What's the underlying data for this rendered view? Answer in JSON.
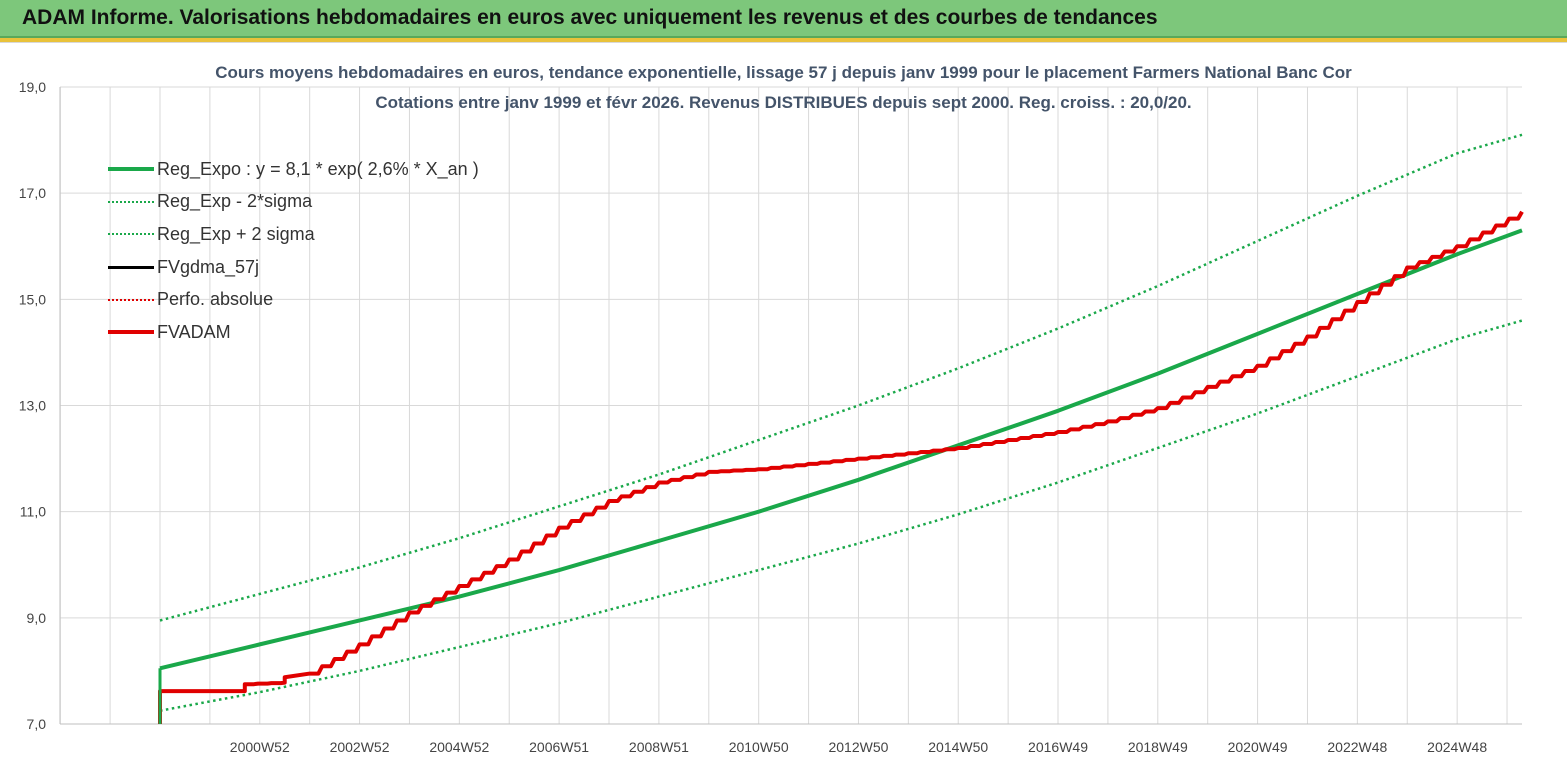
{
  "header": {
    "title": "ADAM Informe. Valorisations hebdomadaires en euros avec uniquement les revenus et des courbes de tendances"
  },
  "colors": {
    "header_bg": "#7dc77b",
    "accent": "#e9c23a",
    "trend": "#1aa84a",
    "fvadam": "#e00000",
    "grid": "#d9d9d9"
  },
  "chart_data": {
    "type": "line",
    "title": "Cours moyens hebdomadaires en euros, tendance exponentielle, lissage 57 j depuis janv 1999  pour le placement Farmers National Banc Cor",
    "subtitle": "Cotations entre janv 1999  et févr 2026. Revenus DISTRIBUES depuis sept 2000. Reg. croiss. : 20,0/20.",
    "xlabel": "",
    "ylabel": "",
    "ylim": [
      7.0,
      19.0
    ],
    "yticks": [
      "7,0",
      "9,0",
      "11,0",
      "13,0",
      "15,0",
      "17,0",
      "19,0"
    ],
    "ytick_values": [
      7,
      9,
      11,
      13,
      15,
      17,
      19
    ],
    "xlim": [
      1999.0,
      2026.3
    ],
    "xticks": [
      "2000W52",
      "2002W52",
      "2004W52",
      "2006W51",
      "2008W51",
      "2010W50",
      "2012W50",
      "2014W50",
      "2016W49",
      "2018W49",
      "2020W49",
      "2022W48",
      "2024W48"
    ],
    "xtick_values": [
      2001.0,
      2003.0,
      2005.0,
      2007.0,
      2009.0,
      2011.0,
      2013.0,
      2015.0,
      2017.0,
      2019.0,
      2021.0,
      2023.0,
      2025.0
    ],
    "grid": true,
    "legend_position": "top-left",
    "legend": [
      {
        "label": "Reg_Expo : y = 8,1 * exp( 2,6% *  X_an )",
        "color": "#1aa84a",
        "style": "solid-thick"
      },
      {
        "label": "Reg_Exp - 2*sigma",
        "color": "#1aa84a",
        "style": "dotted"
      },
      {
        "label": "Reg_Exp + 2 sigma",
        "color": "#1aa84a",
        "style": "dotted"
      },
      {
        "label": "FVgdma_57j",
        "color": "#000000",
        "style": "solid"
      },
      {
        "label": "Perfo. absolue",
        "color": "#e00000",
        "style": "dotted"
      },
      {
        "label": "FVADAM",
        "color": "#e00000",
        "style": "solid-thick"
      }
    ],
    "series": [
      {
        "name": "Reg_Expo : y = 8,1 * exp( 2,6% *  X_an )",
        "x": [
          1999.0,
          2001.0,
          2003.0,
          2005.0,
          2007.0,
          2009.0,
          2011.0,
          2013.0,
          2015.0,
          2017.0,
          2019.0,
          2021.0,
          2023.0,
          2025.0,
          2026.3
        ],
        "y": [
          8.05,
          8.5,
          8.95,
          9.4,
          9.9,
          10.45,
          11.0,
          11.6,
          12.25,
          12.9,
          13.6,
          14.35,
          15.1,
          15.85,
          16.3
        ]
      },
      {
        "name": "Reg_Exp - 2*sigma",
        "x": [
          1999.0,
          2001.0,
          2003.0,
          2005.0,
          2007.0,
          2009.0,
          2011.0,
          2013.0,
          2015.0,
          2017.0,
          2019.0,
          2021.0,
          2023.0,
          2025.0,
          2026.3
        ],
        "y": [
          7.25,
          7.6,
          8.0,
          8.45,
          8.9,
          9.4,
          9.9,
          10.4,
          10.95,
          11.55,
          12.2,
          12.85,
          13.55,
          14.25,
          14.6
        ]
      },
      {
        "name": "Reg_Exp + 2 sigma",
        "x": [
          1999.0,
          2001.0,
          2003.0,
          2005.0,
          2007.0,
          2009.0,
          2011.0,
          2013.0,
          2015.0,
          2017.0,
          2019.0,
          2021.0,
          2023.0,
          2025.0,
          2026.3
        ],
        "y": [
          8.95,
          9.45,
          9.95,
          10.5,
          11.1,
          11.7,
          12.35,
          13.0,
          13.7,
          14.45,
          15.25,
          16.1,
          16.95,
          17.75,
          18.1
        ]
      },
      {
        "name": "FVADAM",
        "x": [
          1999.0,
          1999.0,
          2000.7,
          2000.7,
          2001.5,
          2001.5,
          2002.0,
          2003.0,
          2004.0,
          2005.0,
          2006.0,
          2007.0,
          2008.0,
          2009.0,
          2010.0,
          2011.0,
          2012.0,
          2013.0,
          2014.0,
          2015.0,
          2016.0,
          2017.0,
          2018.0,
          2019.0,
          2020.0,
          2021.0,
          2022.0,
          2023.0,
          2024.0,
          2025.0,
          2026.3
        ],
        "y": [
          7.0,
          7.62,
          7.62,
          7.75,
          7.78,
          7.88,
          7.95,
          8.5,
          9.1,
          9.6,
          10.1,
          10.7,
          11.2,
          11.55,
          11.75,
          11.8,
          11.9,
          12.0,
          12.1,
          12.2,
          12.35,
          12.5,
          12.7,
          12.95,
          13.35,
          13.75,
          14.3,
          14.95,
          15.6,
          16.0,
          16.65
        ]
      }
    ]
  }
}
